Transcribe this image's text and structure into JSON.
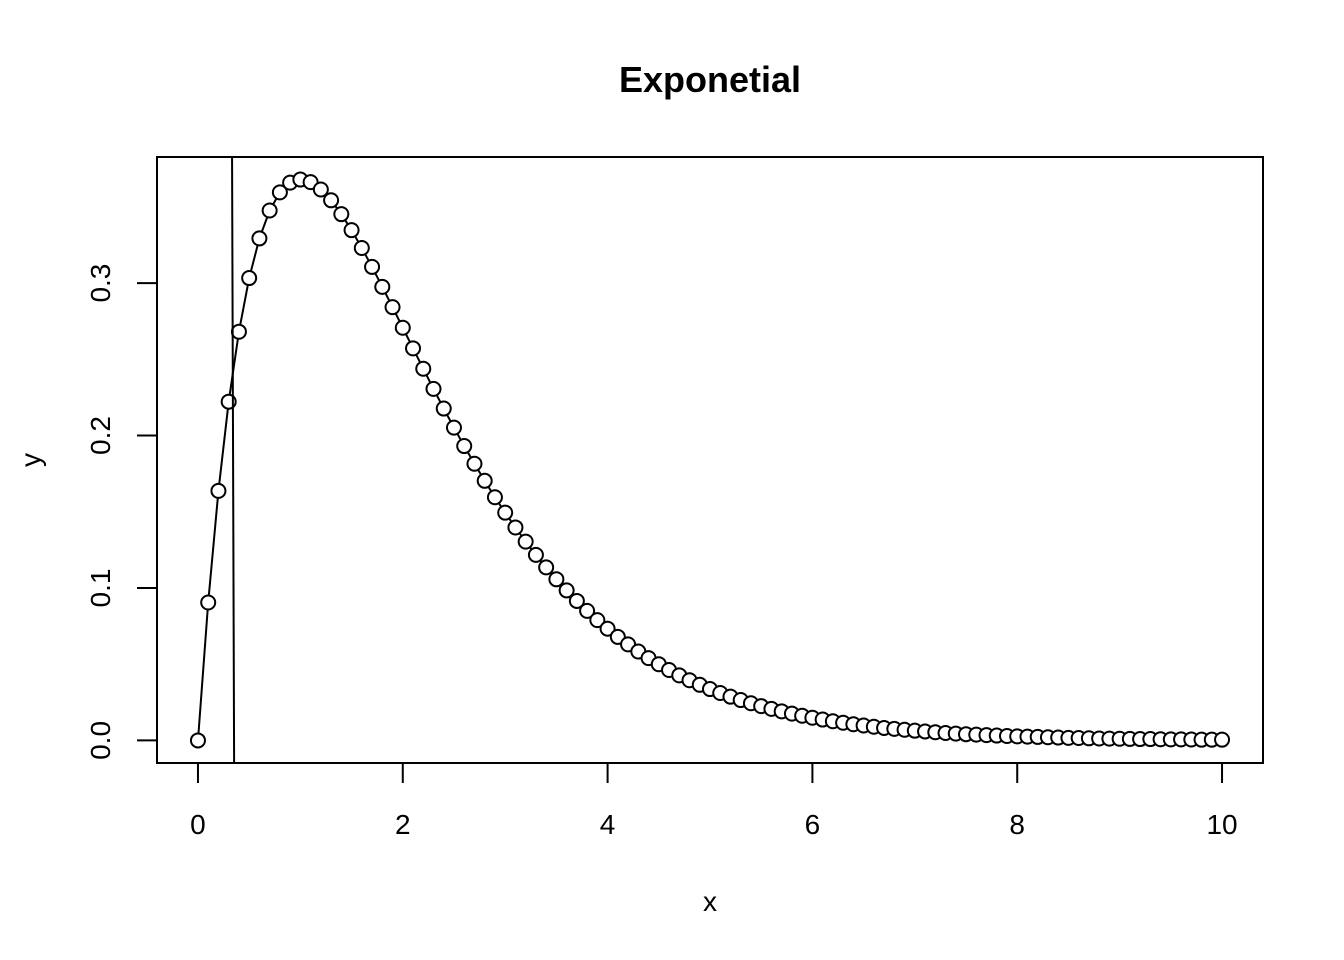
{
  "chart_data": {
    "type": "line",
    "title": "Exponetial",
    "xlabel": "x",
    "ylabel": "y",
    "xlim": [
      -0.4,
      10.4
    ],
    "ylim": [
      -0.0148,
      0.3827
    ],
    "x_ticks": [
      0,
      2,
      4,
      6,
      8,
      10
    ],
    "x_tick_labels": [
      "0",
      "2",
      "4",
      "6",
      "8",
      "10"
    ],
    "y_ticks": [
      0.0,
      0.1,
      0.2,
      0.3
    ],
    "y_tick_labels": [
      "0.0",
      "0.1",
      "0.2",
      "0.3"
    ],
    "grid": false,
    "series": [
      {
        "style": "points-and-line",
        "marker": "open-circle",
        "x": [
          0,
          0.1,
          0.2,
          0.3,
          0.4,
          0.5,
          0.6,
          0.7,
          0.8,
          0.9,
          1,
          1.1,
          1.2,
          1.3,
          1.4,
          1.5,
          1.6,
          1.7,
          1.8,
          1.9,
          2,
          2.1,
          2.2,
          2.3,
          2.4,
          2.5,
          2.6,
          2.7,
          2.8,
          2.9,
          3,
          3.1,
          3.2,
          3.3,
          3.4,
          3.5,
          3.6,
          3.7,
          3.8,
          3.9,
          4,
          4.1,
          4.2,
          4.3,
          4.4,
          4.5,
          4.6,
          4.7,
          4.8,
          4.9,
          5,
          5.1,
          5.2,
          5.3,
          5.4,
          5.5,
          5.6,
          5.7,
          5.8,
          5.9,
          6,
          6.1,
          6.2,
          6.3,
          6.4,
          6.5,
          6.6,
          6.7,
          6.8,
          6.9,
          7,
          7.1,
          7.2,
          7.3,
          7.4,
          7.5,
          7.6,
          7.7,
          7.8,
          7.9,
          8,
          8.1,
          8.2,
          8.3,
          8.4,
          8.5,
          8.6,
          8.7,
          8.8,
          8.9,
          9,
          9.1,
          9.2,
          9.3,
          9.4,
          9.5,
          9.6,
          9.7,
          9.8,
          9.9,
          10
        ],
        "y": [
          0,
          0.0905,
          0.1637,
          0.2222,
          0.2681,
          0.3033,
          0.3293,
          0.3476,
          0.3595,
          0.3659,
          0.3679,
          0.3662,
          0.3614,
          0.3543,
          0.3452,
          0.3347,
          0.323,
          0.3106,
          0.2975,
          0.2842,
          0.2707,
          0.2572,
          0.2438,
          0.2306,
          0.2177,
          0.2052,
          0.1931,
          0.1815,
          0.1703,
          0.1595,
          0.1494,
          0.1397,
          0.1304,
          0.1217,
          0.1135,
          0.1057,
          0.0984,
          0.0915,
          0.085,
          0.0789,
          0.0733,
          0.0679,
          0.063,
          0.0583,
          0.054,
          0.05,
          0.0462,
          0.0427,
          0.0395,
          0.0365,
          0.0337,
          0.0311,
          0.0287,
          0.0265,
          0.0244,
          0.0225,
          0.0207,
          0.0191,
          0.0176,
          0.0162,
          0.0149,
          0.0137,
          0.0126,
          0.0116,
          0.0106,
          0.0098,
          0.009,
          0.0082,
          0.0076,
          0.007,
          0.0064,
          0.0059,
          0.0054,
          0.0049,
          0.0045,
          0.0041,
          0.0038,
          0.0035,
          0.0032,
          0.0029,
          0.0027,
          0.0025,
          0.0023,
          0.0021,
          0.0019,
          0.0017,
          0.0016,
          0.0014,
          0.0013,
          0.0012,
          0.0011,
          0.001,
          0.0009,
          0.0009,
          0.0008,
          0.0007,
          0.0007,
          0.0006,
          0.0005,
          0.0005,
          0.0005
        ]
      },
      {
        "style": "line",
        "x": [
          0.333,
          0.353
        ],
        "y": [
          0.3827,
          -0.0148
        ]
      }
    ]
  }
}
